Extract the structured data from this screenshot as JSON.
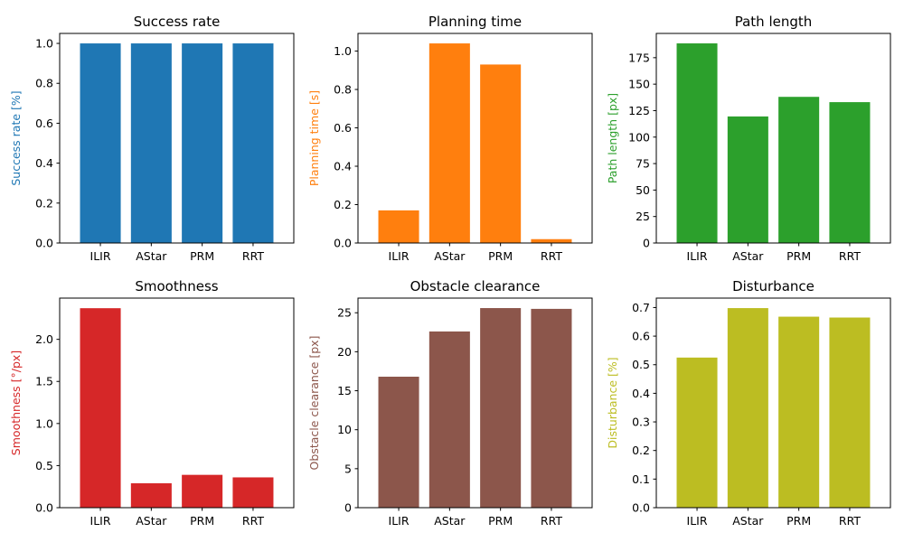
{
  "chart_data": [
    {
      "type": "bar",
      "title": "Success rate",
      "xlabel": "",
      "ylabel": "Success rate [%]",
      "color": "#1f77b4",
      "categories": [
        "ILIR",
        "AStar",
        "PRM",
        "RRT"
      ],
      "values": [
        1.0,
        1.0,
        1.0,
        1.0
      ],
      "ylim": [
        0,
        1.05
      ],
      "yticks": [
        0.0,
        0.2,
        0.4,
        0.6,
        0.8,
        1.0
      ],
      "ytick_labels": [
        "0.0",
        "0.2",
        "0.4",
        "0.6",
        "0.8",
        "1.0"
      ]
    },
    {
      "type": "bar",
      "title": "Planning time",
      "xlabel": "",
      "ylabel": "Planning time [s]",
      "color": "#ff7f0e",
      "categories": [
        "ILIR",
        "AStar",
        "PRM",
        "RRT"
      ],
      "values": [
        0.17,
        1.04,
        0.93,
        0.02
      ],
      "ylim": [
        0,
        1.092
      ],
      "yticks": [
        0.0,
        0.2,
        0.4,
        0.6,
        0.8,
        1.0
      ],
      "ytick_labels": [
        "0.0",
        "0.2",
        "0.4",
        "0.6",
        "0.8",
        "1.0"
      ]
    },
    {
      "type": "bar",
      "title": "Path length",
      "xlabel": "",
      "ylabel": "Path length [px]",
      "color": "#2ca02c",
      "categories": [
        "ILIR",
        "AStar",
        "PRM",
        "RRT"
      ],
      "values": [
        188.5,
        119.5,
        138.0,
        133.0
      ],
      "ylim": [
        0,
        197.9
      ],
      "yticks": [
        0,
        25,
        50,
        75,
        100,
        125,
        150,
        175
      ],
      "ytick_labels": [
        "0",
        "25",
        "50",
        "75",
        "100",
        "125",
        "150",
        "175"
      ]
    },
    {
      "type": "bar",
      "title": "Smoothness",
      "xlabel": "",
      "ylabel": "Smoothness [°/px]",
      "color": "#d62728",
      "categories": [
        "ILIR",
        "AStar",
        "PRM",
        "RRT"
      ],
      "values": [
        2.37,
        0.29,
        0.39,
        0.36
      ],
      "ylim": [
        0,
        2.49
      ],
      "yticks": [
        0.0,
        0.5,
        1.0,
        1.5,
        2.0
      ],
      "ytick_labels": [
        "0.0",
        "0.5",
        "1.0",
        "1.5",
        "2.0"
      ]
    },
    {
      "type": "bar",
      "title": "Obstacle clearance",
      "xlabel": "",
      "ylabel": "Obstacle clearance [px]",
      "color": "#8c564b",
      "categories": [
        "ILIR",
        "AStar",
        "PRM",
        "RRT"
      ],
      "values": [
        16.8,
        22.6,
        25.6,
        25.5
      ],
      "ylim": [
        0,
        26.88
      ],
      "yticks": [
        0,
        5,
        10,
        15,
        20,
        25
      ],
      "ytick_labels": [
        "0",
        "5",
        "10",
        "15",
        "20",
        "25"
      ]
    },
    {
      "type": "bar",
      "title": "Disturbance",
      "xlabel": "",
      "ylabel": "Disturbance [%]",
      "color": "#bcbd22",
      "categories": [
        "ILIR",
        "AStar",
        "PRM",
        "RRT"
      ],
      "values": [
        0.525,
        0.698,
        0.668,
        0.665
      ],
      "ylim": [
        0,
        0.733
      ],
      "yticks": [
        0.0,
        0.1,
        0.2,
        0.3,
        0.4,
        0.5,
        0.6,
        0.7
      ],
      "ytick_labels": [
        "0.0",
        "0.1",
        "0.2",
        "0.3",
        "0.4",
        "0.5",
        "0.6",
        "0.7"
      ]
    }
  ]
}
